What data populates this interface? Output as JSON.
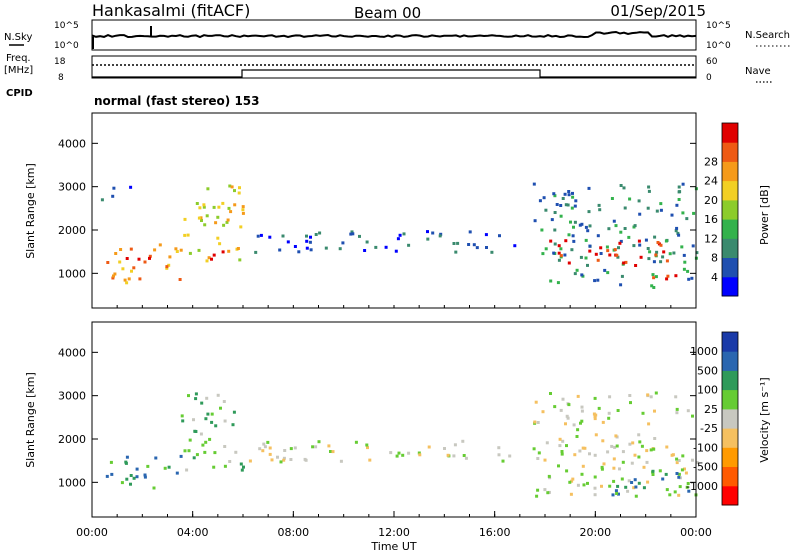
{
  "header": {
    "station": "Hankasalmi (fitACF)",
    "beam": "Beam 00",
    "date": "01/Sep/2015"
  },
  "nsky_panel": {
    "left_label": "N.Sky",
    "right_label": "N.Search",
    "left_ticks": [
      "10^5",
      "10^0"
    ],
    "right_ticks": [
      "10^5",
      "10^0"
    ]
  },
  "freq_panel": {
    "left_label_1": "Freq.",
    "left_label_2": "[MHz]",
    "right_label": "Nave",
    "left_ticks": [
      "18",
      "8"
    ],
    "right_ticks": [
      "60",
      "0"
    ]
  },
  "cpid_label": "CPID",
  "mode_label": "normal (fast stereo) 153",
  "colors": {
    "power": [
      "#0000ff",
      "#1f4fb0",
      "#3a8a6e",
      "#33b24c",
      "#8ccc2b",
      "#f2cf24",
      "#f59a1a",
      "#ee5a14",
      "#e00000"
    ],
    "velocity": [
      "#ff0000",
      "#ff5a00",
      "#ff9a00",
      "#f5c060",
      "#c8c8c0",
      "#66cc33",
      "#2f9a5a",
      "#2a66b0",
      "#1a3aa8"
    ]
  },
  "chart_data": [
    {
      "type": "heatmap",
      "name": "power",
      "ylabel": "Slant Range [km]",
      "yticks": [
        1000,
        2000,
        3000,
        4000
      ],
      "ylim": [
        200,
        4700
      ],
      "xlim": [
        0,
        24
      ],
      "colorbar_label": "Power [dB]",
      "colorbar_ticks": [
        "4",
        "8",
        "12",
        "16",
        "20",
        "24",
        "28"
      ],
      "regions": [
        {
          "x0": 0.5,
          "x1": 3.5,
          "y0": 800,
          "y1": 1700,
          "level": 6
        },
        {
          "x0": 1.0,
          "x1": 2.5,
          "y0": 1100,
          "y1": 1500,
          "level": 8
        },
        {
          "x0": 0.3,
          "x1": 1.5,
          "y0": 2700,
          "y1": 3100,
          "level": 1
        },
        {
          "x0": 3.5,
          "x1": 6.0,
          "y0": 1300,
          "y1": 3100,
          "level": 5
        },
        {
          "x0": 4.5,
          "x1": 5.8,
          "y0": 1300,
          "y1": 1700,
          "level": 7
        },
        {
          "x0": 6.0,
          "x1": 17.0,
          "y0": 1500,
          "y1": 2000,
          "level": 1
        },
        {
          "x0": 17.5,
          "x1": 24.0,
          "y0": 700,
          "y1": 3100,
          "level": 2
        },
        {
          "x0": 18.0,
          "x1": 23.0,
          "y0": 1200,
          "y1": 1800,
          "level": 8
        },
        {
          "x0": 22.0,
          "x1": 24.0,
          "y0": 800,
          "y1": 1000,
          "level": 8
        }
      ]
    },
    {
      "type": "heatmap",
      "name": "velocity",
      "ylabel": "Slant Range [km]",
      "xlabel": "Time UT",
      "yticks": [
        1000,
        2000,
        3000,
        4000
      ],
      "ylim": [
        200,
        4700
      ],
      "xlim": [
        0,
        24
      ],
      "xticks": [
        "00:00",
        "04:00",
        "08:00",
        "12:00",
        "16:00",
        "20:00",
        "00:00"
      ],
      "colorbar_label": "Velocity [m s⁻¹]",
      "colorbar_ticks": [
        "-1000",
        "-500",
        "-100",
        "-25",
        "25",
        "100",
        "500",
        "1000"
      ],
      "regions": [
        {
          "x0": 0.5,
          "x1": 3.5,
          "y0": 900,
          "y1": 1700,
          "level": 6
        },
        {
          "x0": 3.5,
          "x1": 6.0,
          "y0": 1300,
          "y1": 3100,
          "level": 5
        },
        {
          "x0": 6.0,
          "x1": 17.0,
          "y0": 1500,
          "y1": 2000,
          "level": 4
        },
        {
          "x0": 17.5,
          "x1": 24.0,
          "y0": 700,
          "y1": 3100,
          "level": 4
        },
        {
          "x0": 20.5,
          "x1": 24.0,
          "y0": 700,
          "y1": 1500,
          "level": 6
        }
      ]
    }
  ]
}
